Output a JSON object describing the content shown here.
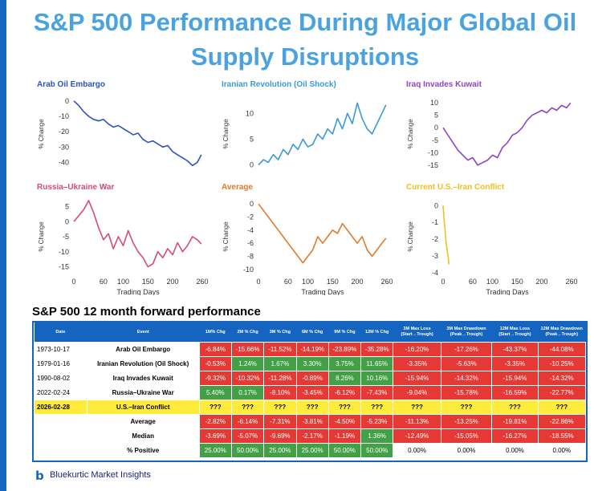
{
  "title": "S&P 500 Performance During Major Global Oil Supply Disruptions",
  "colors": {
    "title": "#4aa3df",
    "accent": "#1565c0",
    "header": "#1565c0",
    "neg": "#e53935",
    "pos": "#43a047",
    "highlight": "#ffeb3b"
  },
  "chart_data": [
    {
      "type": "line",
      "title": "Arab Oil Embargo",
      "color": "#2a55b8",
      "ylabel": "% Change",
      "xlabel": "",
      "ylim": [
        -45,
        2
      ],
      "yticks": [
        0,
        -10,
        -20,
        -30,
        -40
      ],
      "xlim": [
        0,
        260
      ],
      "xticks": [],
      "x": [
        0,
        10,
        20,
        30,
        40,
        50,
        60,
        70,
        80,
        90,
        100,
        110,
        120,
        130,
        140,
        150,
        160,
        170,
        180,
        190,
        200,
        210,
        220,
        230,
        240,
        250,
        258
      ],
      "y": [
        0,
        -3,
        -7,
        -10,
        -12,
        -13,
        -12,
        -15,
        -17,
        -16,
        -18,
        -20,
        -22,
        -21,
        -25,
        -27,
        -26,
        -28,
        -30,
        -29,
        -33,
        -35,
        -37,
        -39,
        -42,
        -40,
        -35
      ]
    },
    {
      "type": "line",
      "title": "Iranian Revolution (Oil Shock)",
      "color": "#3a9ad9",
      "ylabel": "% Change",
      "xlabel": "",
      "ylim": [
        -1,
        13
      ],
      "yticks": [
        10,
        5,
        0
      ],
      "xlim": [
        0,
        260
      ],
      "xticks": [],
      "x": [
        0,
        10,
        20,
        30,
        40,
        50,
        60,
        70,
        80,
        90,
        100,
        110,
        120,
        130,
        140,
        150,
        160,
        170,
        180,
        190,
        200,
        210,
        220,
        230,
        240,
        250,
        258
      ],
      "y": [
        0,
        1,
        0.5,
        2,
        1,
        3,
        2,
        4,
        3,
        5,
        3.5,
        4,
        6,
        5,
        7,
        6,
        9,
        7,
        10,
        8,
        12,
        9,
        7,
        6,
        8,
        10,
        11.65
      ]
    },
    {
      "type": "line",
      "title": "Iraq Invades Kuwait",
      "color": "#8e44c8",
      "ylabel": "% Change",
      "xlabel": "",
      "ylim": [
        -17,
        12
      ],
      "yticks": [
        10,
        5,
        0,
        -5,
        -10,
        -15
      ],
      "xlim": [
        0,
        260
      ],
      "xticks": [],
      "x": [
        0,
        10,
        20,
        30,
        40,
        50,
        60,
        70,
        80,
        90,
        100,
        110,
        120,
        130,
        140,
        150,
        160,
        170,
        180,
        190,
        200,
        210,
        220,
        230,
        240,
        250,
        258
      ],
      "y": [
        0,
        -3,
        -6,
        -9,
        -11,
        -13,
        -12,
        -15,
        -14,
        -13,
        -11,
        -12,
        -8,
        -6,
        -3,
        -2,
        0,
        3,
        5,
        6,
        7,
        6,
        8,
        7,
        9,
        8,
        10
      ]
    },
    {
      "type": "line",
      "title": "Russia–Ukraine War",
      "color": "#d44a7a",
      "ylabel": "% Change",
      "xlabel": "Trading Days",
      "ylim": [
        -17,
        7
      ],
      "yticks": [
        5,
        0,
        -5,
        -10,
        -15
      ],
      "xlim": [
        0,
        260
      ],
      "xticks": [
        0,
        60,
        100,
        150,
        200,
        260
      ],
      "x": [
        0,
        10,
        20,
        30,
        40,
        50,
        60,
        70,
        80,
        90,
        100,
        110,
        120,
        130,
        140,
        150,
        160,
        170,
        180,
        190,
        200,
        210,
        220,
        230,
        240,
        250,
        258
      ],
      "y": [
        0,
        2,
        4,
        7,
        3,
        -2,
        -6,
        -4,
        -9,
        -5,
        -8,
        -3,
        -7,
        -10,
        -12,
        -15,
        -14,
        -10,
        -12,
        -9,
        -11,
        -7,
        -10,
        -8,
        -5,
        -6,
        -7.43
      ]
    },
    {
      "type": "line",
      "title": "Average",
      "color": "#e07a2e",
      "ylabel": "% Change",
      "xlabel": "Trading Days",
      "ylim": [
        -10.5,
        0.5
      ],
      "yticks": [
        0,
        -2,
        -4,
        -6,
        -8,
        -10
      ],
      "xlim": [
        0,
        260
      ],
      "xticks": [
        0,
        60,
        100,
        150,
        200,
        260
      ],
      "x": [
        0,
        10,
        20,
        30,
        40,
        50,
        60,
        70,
        80,
        90,
        100,
        110,
        120,
        130,
        140,
        150,
        160,
        170,
        180,
        190,
        200,
        210,
        220,
        230,
        240,
        250,
        258
      ],
      "y": [
        0,
        -1,
        -2,
        -3,
        -4,
        -5,
        -6,
        -7,
        -8,
        -9,
        -8,
        -7,
        -5,
        -6,
        -5,
        -4,
        -4.5,
        -3,
        -4,
        -5,
        -6,
        -5,
        -7,
        -8,
        -7,
        -6,
        -5.23
      ]
    },
    {
      "type": "line",
      "title": "Current U.S.–Iran Conflict",
      "color": "#f0c020",
      "ylabel": "% Change",
      "xlabel": "Trading Days",
      "ylim": [
        -4,
        0.3
      ],
      "yticks": [
        0,
        -1,
        -2,
        -3,
        -4
      ],
      "xlim": [
        0,
        260
      ],
      "xticks": [
        0,
        60,
        100,
        150,
        200,
        260
      ],
      "x": [
        0,
        2,
        4,
        6,
        8,
        10,
        12
      ],
      "y": [
        0,
        -0.8,
        -1.5,
        -2.2,
        -2.6,
        -3.0,
        -3.5
      ]
    }
  ],
  "table": {
    "section_title": "S&P 500 12 month forward performance",
    "headers": [
      "Date",
      "Event",
      "1M% Chg",
      "2M % Chg",
      "3M % Chg",
      "6M % Chg",
      "9M % Chg",
      "12M % Chg",
      "3M Max Loss (Start→Trough)",
      "3M Max Drawdown (Peak→Trough)",
      "12M Max Loss (Start→Trough)",
      "12M Max Drawdown (Peak→Trough)"
    ],
    "rows": [
      {
        "date": "1973-10-17",
        "event": "Arab Oil Embargo",
        "values": [
          "-6.84%",
          "-15.66%",
          "-11.52%",
          "-14.19%",
          "-23.89%",
          "-35.28%",
          "-16.20%",
          "-17.26%",
          "-43.37%",
          "-44.08%"
        ]
      },
      {
        "date": "1979-01-16",
        "event": "Iranian Revolution (Oil Shock)",
        "values": [
          "-0.53%",
          "1.24%",
          "1.67%",
          "3.30%",
          "3.75%",
          "11.65%",
          "-3.35%",
          "-5.63%",
          "-3.35%",
          "-10.25%"
        ]
      },
      {
        "date": "1990-08-02",
        "event": "Iraq Invades Kuwait",
        "values": [
          "-9.32%",
          "-10.32%",
          "-11.28%",
          "-0.89%",
          "8.26%",
          "10.16%",
          "-15.94%",
          "-14.32%",
          "-15.94%",
          "-14.32%"
        ]
      },
      {
        "date": "2022-02-24",
        "event": "Russia–Ukraine War",
        "values": [
          "5.40%",
          "0.17%",
          "-8.10%",
          "-3.45%",
          "-6.12%",
          "-7.43%",
          "-9.04%",
          "-15.78%",
          "-16.59%",
          "-22.77%"
        ]
      }
    ],
    "pending_row": {
      "date": "2026-02-28",
      "event": "U.S.–Iran Conflict",
      "values": [
        "???",
        "???",
        "???",
        "???",
        "???",
        "???",
        "???",
        "???",
        "???",
        "???"
      ]
    },
    "summary_rows": [
      {
        "label": "Average",
        "values": [
          "-2.82%",
          "-6.14%",
          "-7.31%",
          "-3.81%",
          "-4.50%",
          "-5.23%",
          "-11.13%",
          "-13.25%",
          "-19.81%",
          "-22.86%"
        ]
      },
      {
        "label": "Median",
        "values": [
          "-3.69%",
          "-5.07%",
          "-9.69%",
          "-2.17%",
          "-1.19%",
          "1.36%",
          "-12.49%",
          "-15.05%",
          "-16.27%",
          "-18.55%"
        ]
      },
      {
        "label": "% Positive",
        "values": [
          "25.00%",
          "50.00%",
          "25.00%",
          "25.00%",
          "50.00%",
          "50.00%",
          "0.00%",
          "0.00%",
          "0.00%",
          "0.00%"
        ]
      }
    ]
  },
  "footer": {
    "brand": "Bluekurtic Market Insights",
    "logo_glyph": "b"
  }
}
